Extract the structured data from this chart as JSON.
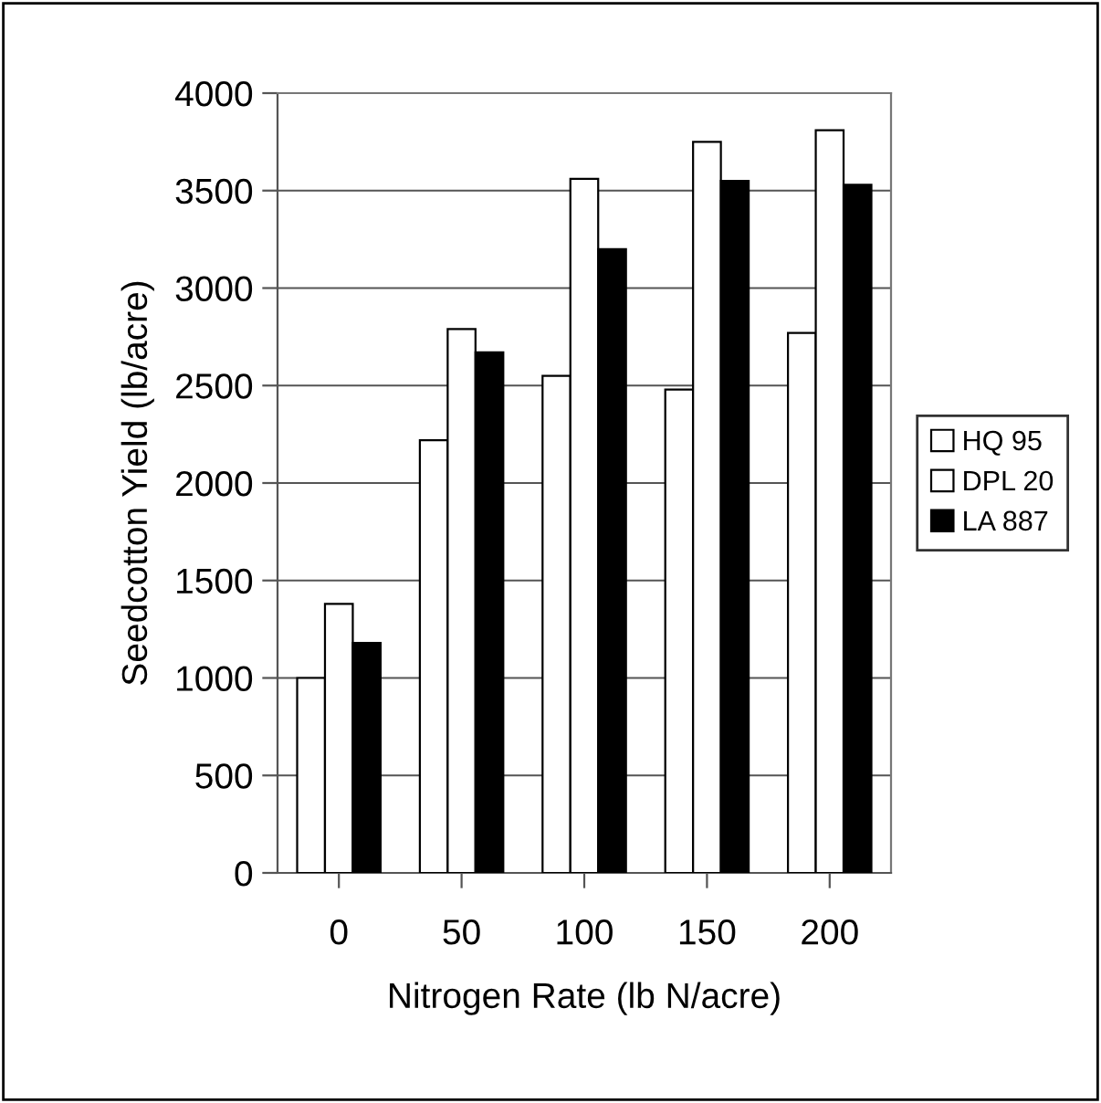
{
  "chart_data": {
    "type": "bar",
    "xlabel": "Nitrogen Rate (lb N/acre)",
    "ylabel": "Seedcotton Yield (lb/acre)",
    "categories": [
      "0",
      "50",
      "100",
      "150",
      "200"
    ],
    "series": [
      {
        "name": "HQ 95",
        "color": "#ffffff",
        "values": [
          1000,
          2220,
          2550,
          2480,
          2770
        ]
      },
      {
        "name": "DPL 20",
        "color": "#ffffff",
        "values": [
          1380,
          2790,
          3560,
          3750,
          3810
        ]
      },
      {
        "name": "LA 887",
        "color": "#000000",
        "values": [
          1180,
          2670,
          3200,
          3550,
          3530
        ]
      }
    ],
    "ylim": [
      0,
      4000
    ],
    "yticks": [
      0,
      500,
      1000,
      1500,
      2000,
      2500,
      3000,
      3500,
      4000
    ],
    "grid": "y",
    "legend": "right"
  }
}
